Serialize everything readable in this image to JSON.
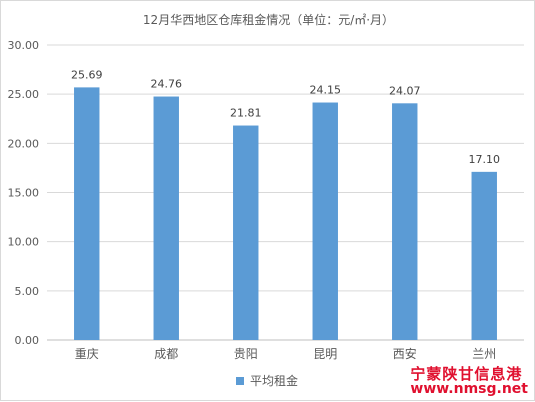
{
  "chart_data": {
    "type": "bar",
    "title": "12月华西地区仓库租金情况（单位：元/㎡·月）",
    "categories": [
      "重庆",
      "成都",
      "贵阳",
      "昆明",
      "西安",
      "兰州"
    ],
    "series": [
      {
        "name": "平均租金",
        "values": [
          25.69,
          24.76,
          21.81,
          24.15,
          24.07,
          17.1
        ],
        "labels": [
          "25.69",
          "24.76",
          "21.81",
          "24.15",
          "24.07",
          "17.10"
        ],
        "color": "#5b9bd5"
      }
    ],
    "ylim": [
      0,
      30
    ],
    "yticks": [
      "0.00",
      "5.00",
      "10.00",
      "15.00",
      "20.00",
      "25.00",
      "30.00"
    ],
    "grid": true,
    "legend_position": "bottom"
  },
  "watermark": {
    "name": "宁蒙陕甘信息港",
    "url": "www.nmsg.net"
  }
}
